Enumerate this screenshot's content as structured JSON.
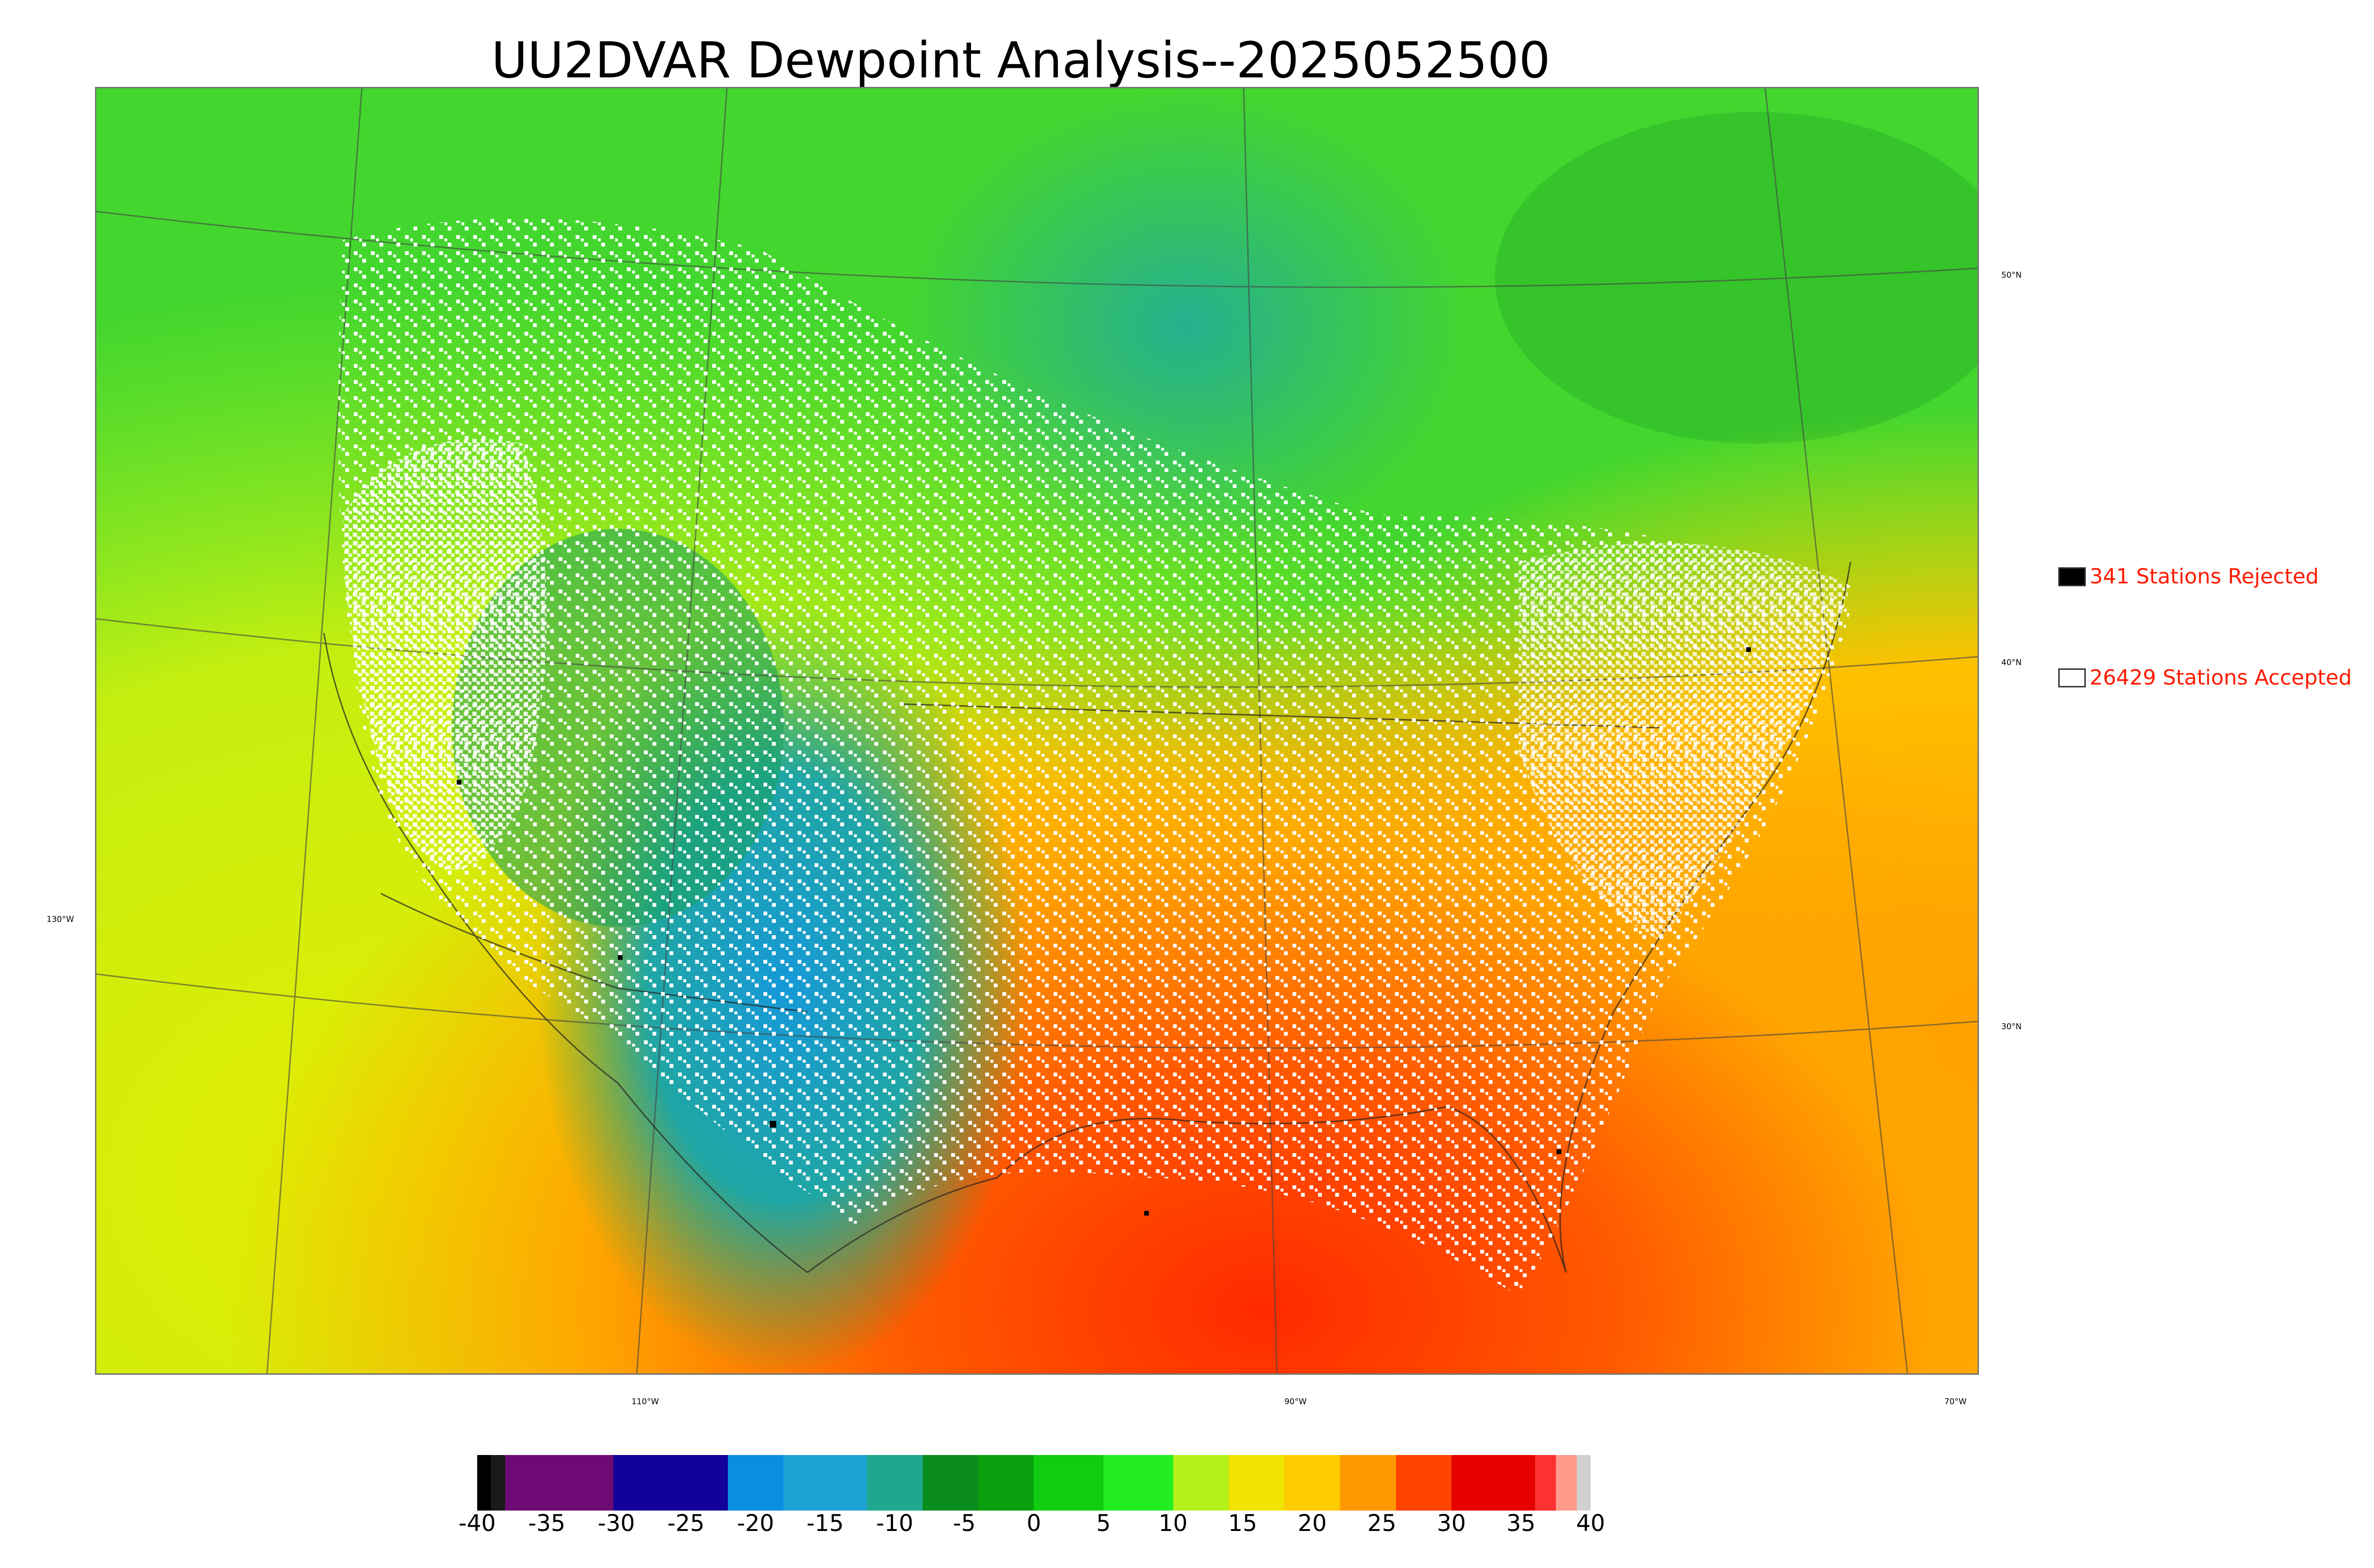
{
  "title": "UU2DVAR Dewpoint Analysis--2025052500",
  "map": {
    "longitude_labels": [
      {
        "label": "130°W",
        "anchor": "left-edge"
      },
      {
        "label": "110°W",
        "anchor": "bottom"
      },
      {
        "label": "90°W",
        "anchor": "bottom"
      },
      {
        "label": "70°W",
        "anchor": "bottom"
      }
    ],
    "latitude_labels": [
      "50°N",
      "40°N",
      "30°N"
    ],
    "background_color": "#5bd63a"
  },
  "legend": {
    "rejected": {
      "count": "341",
      "label": "341 Stations Rejected",
      "swatch_color": "#000000"
    },
    "accepted": {
      "count": "26429",
      "label": "26429 Stations Accepted",
      "swatch_color": "#ffffff"
    },
    "text_color": "#ff1a00"
  },
  "colorbar": {
    "ticks": [
      "-40",
      "-35",
      "-30",
      "-25",
      "-20",
      "-15",
      "-10",
      "-5",
      "0",
      "5",
      "10",
      "15",
      "20",
      "25",
      "30",
      "35",
      "40"
    ],
    "range": [
      -40,
      40
    ],
    "segments": [
      {
        "from": -40,
        "to": -39,
        "color": "#000000"
      },
      {
        "from": -39,
        "to": -38,
        "color": "#1a1a1a"
      },
      {
        "from": -38,
        "to": -30.2,
        "color": "#6e0a74"
      },
      {
        "from": -30.2,
        "to": -22,
        "color": "#12029a"
      },
      {
        "from": -22,
        "to": -18,
        "color": "#0a8ee0"
      },
      {
        "from": -18,
        "to": -12,
        "color": "#1fa3d6"
      },
      {
        "from": -12,
        "to": -8,
        "color": "#1fa88f"
      },
      {
        "from": -8,
        "to": -4,
        "color": "#0a8c1e"
      },
      {
        "from": -4,
        "to": 0,
        "color": "#0ba00f"
      },
      {
        "from": 0,
        "to": 5,
        "color": "#11cc11"
      },
      {
        "from": 5,
        "to": 10,
        "color": "#22ee22"
      },
      {
        "from": 10,
        "to": 14,
        "color": "#b6f01d"
      },
      {
        "from": 14,
        "to": 18,
        "color": "#f0e400"
      },
      {
        "from": 18,
        "to": 22,
        "color": "#ffcc00"
      },
      {
        "from": 22,
        "to": 26,
        "color": "#ff9900"
      },
      {
        "from": 26,
        "to": 30,
        "color": "#ff4400"
      },
      {
        "from": 30,
        "to": 36,
        "color": "#e60000"
      },
      {
        "from": 36,
        "to": 37.5,
        "color": "#ff3030"
      },
      {
        "from": 37.5,
        "to": 39,
        "color": "#ff9a8a"
      },
      {
        "from": 39,
        "to": 40,
        "color": "#d0d0d0"
      }
    ]
  }
}
